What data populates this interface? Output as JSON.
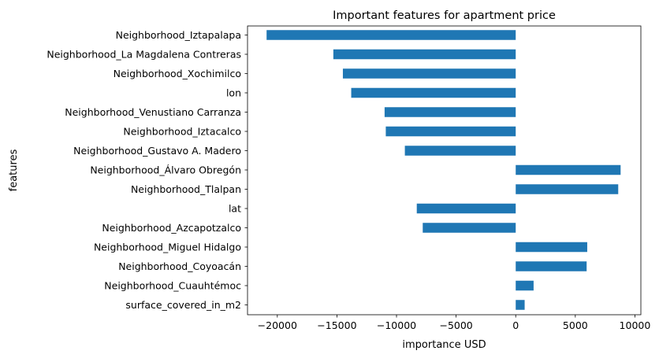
{
  "chart_data": {
    "type": "bar",
    "orientation": "horizontal",
    "title": "Important features for apartment price",
    "xlabel": "importance USD",
    "ylabel": "features",
    "xlim": [
      -22500,
      10500
    ],
    "xticks": [
      -20000,
      -15000,
      -10000,
      -5000,
      0,
      5000,
      10000
    ],
    "xtick_labels": [
      "−20000",
      "−15000",
      "−10000",
      "−5000",
      "0",
      "5000",
      "10000"
    ],
    "grid": false,
    "legend": "none",
    "bar_color": "#1f77b4",
    "categories": [
      "Neighborhood_Iztapalapa",
      "Neighborhood_La Magdalena Contreras",
      "Neighborhood_Xochimilco",
      "lon",
      "Neighborhood_Venustiano Carranza",
      "Neighborhood_Iztacalco",
      "Neighborhood_Gustavo A. Madero",
      "Neighborhood_Álvaro Obregón",
      "Neighborhood_Tlalpan",
      "lat",
      "Neighborhood_Azcapotzalco",
      "Neighborhood_Miguel Hidalgo",
      "Neighborhood_Coyoacán",
      "Neighborhood_Cuauhtémoc",
      "surface_covered_in_m2"
    ],
    "values": [
      -20900,
      -15300,
      -14500,
      -13800,
      -11000,
      -10900,
      -9300,
      8800,
      8600,
      -8300,
      -7800,
      6000,
      5950,
      1500,
      750
    ]
  }
}
